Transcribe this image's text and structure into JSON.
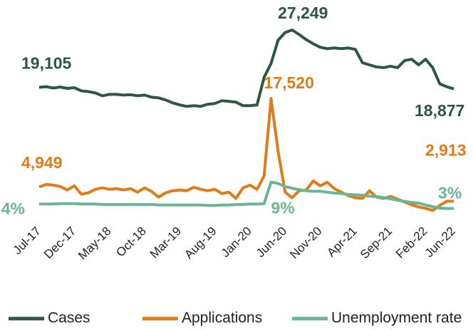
{
  "chart_data": {
    "type": "line",
    "categories": [
      "Jul-17",
      null,
      null,
      null,
      null,
      "Dec-17",
      null,
      null,
      null,
      null,
      "May-18",
      null,
      null,
      null,
      null,
      "Oct-18",
      null,
      null,
      null,
      null,
      "Mar-19",
      null,
      null,
      null,
      null,
      "Aug-19",
      null,
      null,
      null,
      null,
      "Jan-20",
      null,
      null,
      null,
      null,
      "Jun-20",
      null,
      null,
      null,
      null,
      "Nov-20",
      null,
      null,
      null,
      null,
      "Apr-21",
      null,
      null,
      null,
      null,
      "Sep-21",
      null,
      null,
      null,
      null,
      "Feb-22",
      null,
      null,
      null,
      "Jun-22"
    ],
    "ylim": [
      0,
      30000
    ],
    "y2lim": [
      0,
      48
    ],
    "series": [
      {
        "name": "Cases",
        "color": "#2e5741",
        "values": [
          19105,
          19200,
          19000,
          19150,
          18950,
          19050,
          18600,
          18500,
          18300,
          17900,
          18100,
          18100,
          18000,
          18050,
          17900,
          18000,
          17700,
          17600,
          17300,
          16900,
          16600,
          16400,
          16500,
          16400,
          16700,
          16800,
          17200,
          17100,
          17000,
          16500,
          16500,
          16600,
          20500,
          22500,
          25800,
          26900,
          27249,
          26600,
          25900,
          25300,
          24800,
          24600,
          24700,
          24600,
          24700,
          24500,
          22600,
          22300,
          22000,
          21900,
          22100,
          21900,
          22900,
          23100,
          22300,
          23100,
          21900,
          19600,
          19200,
          18877
        ],
        "value_labels": [
          "19,105",
          null,
          null,
          null,
          null,
          null,
          null,
          null,
          null,
          null,
          null,
          null,
          null,
          null,
          null,
          null,
          null,
          null,
          null,
          null,
          null,
          null,
          null,
          null,
          null,
          null,
          null,
          null,
          null,
          null,
          null,
          null,
          null,
          null,
          null,
          null,
          "27,249",
          null,
          null,
          null,
          null,
          null,
          null,
          null,
          null,
          null,
          null,
          null,
          null,
          null,
          null,
          null,
          null,
          null,
          null,
          null,
          null,
          null,
          null,
          "18,877"
        ]
      },
      {
        "name": "Applications",
        "color": "#e07b1a",
        "values": [
          4949,
          5300,
          5200,
          5000,
          4500,
          5100,
          3900,
          4100,
          4600,
          4800,
          4600,
          4700,
          4500,
          4700,
          4200,
          4800,
          4300,
          3500,
          4100,
          4400,
          4500,
          4400,
          4900,
          4600,
          4400,
          4600,
          4000,
          4200,
          3300,
          4800,
          5200,
          4600,
          6500,
          17520,
          10000,
          4200,
          3400,
          4400,
          4500,
          5800,
          5100,
          5600,
          4700,
          4200,
          3700,
          3400,
          3300,
          4400,
          3500,
          3300,
          3600,
          3200,
          2800,
          2400,
          2100,
          1900,
          1600,
          2300,
          2900,
          2913
        ],
        "value_labels": [
          "4,949",
          null,
          null,
          null,
          null,
          null,
          null,
          null,
          null,
          null,
          null,
          null,
          null,
          null,
          null,
          null,
          null,
          null,
          null,
          null,
          null,
          null,
          null,
          null,
          null,
          null,
          null,
          null,
          null,
          null,
          null,
          null,
          null,
          "17,520",
          null,
          null,
          null,
          null,
          null,
          null,
          null,
          null,
          null,
          null,
          null,
          null,
          null,
          null,
          null,
          null,
          null,
          null,
          null,
          null,
          null,
          null,
          null,
          null,
          null,
          "2,913"
        ]
      },
      {
        "name": "Unemployment rate",
        "color": "#6bb596",
        "axis": "y2",
        "values": [
          4.0,
          4.0,
          4.0,
          4.1,
          4.1,
          4.1,
          4.0,
          4.0,
          4.0,
          3.9,
          3.9,
          3.9,
          3.9,
          3.9,
          3.9,
          3.9,
          3.9,
          3.8,
          3.8,
          3.8,
          3.8,
          3.8,
          3.8,
          3.8,
          3.7,
          3.7,
          3.8,
          3.8,
          3.9,
          3.9,
          4.0,
          4.0,
          4.1,
          9.0,
          8.7,
          8.0,
          7.6,
          7.3,
          7.0,
          6.9,
          6.9,
          6.7,
          6.5,
          6.4,
          6.2,
          6.1,
          6.0,
          5.8,
          5.7,
          5.5,
          5.2,
          4.9,
          4.6,
          4.4,
          4.2,
          3.8,
          3.4,
          3.1,
          3.0,
          3.0
        ],
        "value_labels": [
          "4%",
          null,
          null,
          null,
          null,
          null,
          null,
          null,
          null,
          null,
          null,
          null,
          null,
          null,
          null,
          null,
          null,
          null,
          null,
          null,
          null,
          null,
          null,
          null,
          null,
          null,
          null,
          null,
          null,
          null,
          null,
          null,
          null,
          "9%",
          null,
          null,
          null,
          null,
          null,
          null,
          null,
          null,
          null,
          null,
          null,
          null,
          null,
          null,
          null,
          null,
          null,
          null,
          null,
          null,
          null,
          null,
          null,
          null,
          null,
          "3%"
        ]
      }
    ]
  }
}
